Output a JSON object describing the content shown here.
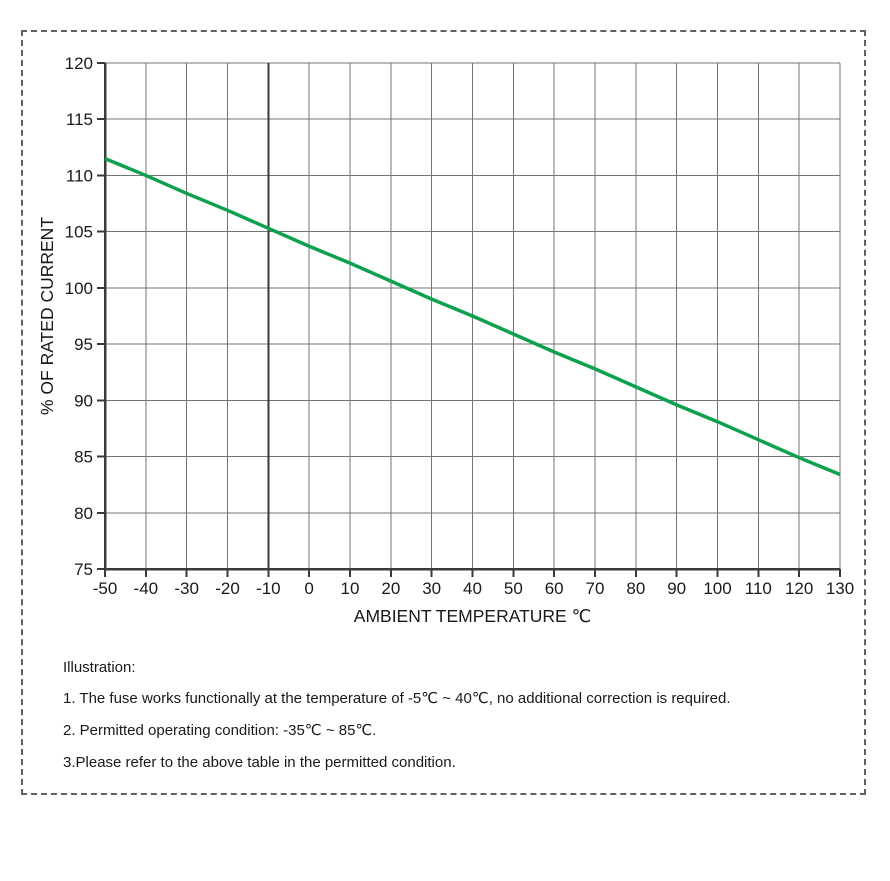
{
  "page": {
    "background": "#ffffff",
    "frame_border_color": "#606060"
  },
  "chart_data": {
    "type": "line",
    "title": "",
    "xlabel": "AMBIENT TEMPERATURE ℃",
    "ylabel": "% OF RATED CURRENT",
    "xlim": [
      -50,
      130
    ],
    "ylim": [
      75,
      120
    ],
    "x_ticks": [
      -50,
      -40,
      -30,
      -20,
      -10,
      0,
      10,
      20,
      30,
      40,
      50,
      60,
      70,
      80,
      90,
      100,
      110,
      120,
      130
    ],
    "y_ticks": [
      75,
      80,
      85,
      90,
      95,
      100,
      105,
      110,
      115,
      120
    ],
    "grid": true,
    "highlight_x_gridline": -10,
    "legend": "none",
    "colors": {
      "grid": "#757575",
      "axis": "#3a3a3a",
      "highlight_gridline": "#3a3a3a",
      "tick_text": "#1a1a1a",
      "series": "#0da14d"
    },
    "series": [
      {
        "name": "derating-curve",
        "color": "#0da14d",
        "x": [
          -50,
          -40,
          -30,
          -20,
          -10,
          0,
          10,
          20,
          30,
          40,
          50,
          60,
          70,
          80,
          90,
          100,
          110,
          120,
          130
        ],
        "values": [
          111.5,
          110.0,
          108.4,
          106.9,
          105.3,
          103.7,
          102.2,
          100.6,
          99.0,
          97.5,
          95.9,
          94.3,
          92.8,
          91.2,
          89.6,
          88.1,
          86.5,
          84.9,
          83.4
        ]
      }
    ]
  },
  "notes": {
    "heading": "Illustration:",
    "items": [
      "1. The fuse works functionally at the temperature of -5℃ ~ 40℃, no additional correction is required.",
      "2. Permitted operating condition: -35℃ ~ 85℃.",
      "3.Please refer to the above table in the permitted condition."
    ]
  }
}
